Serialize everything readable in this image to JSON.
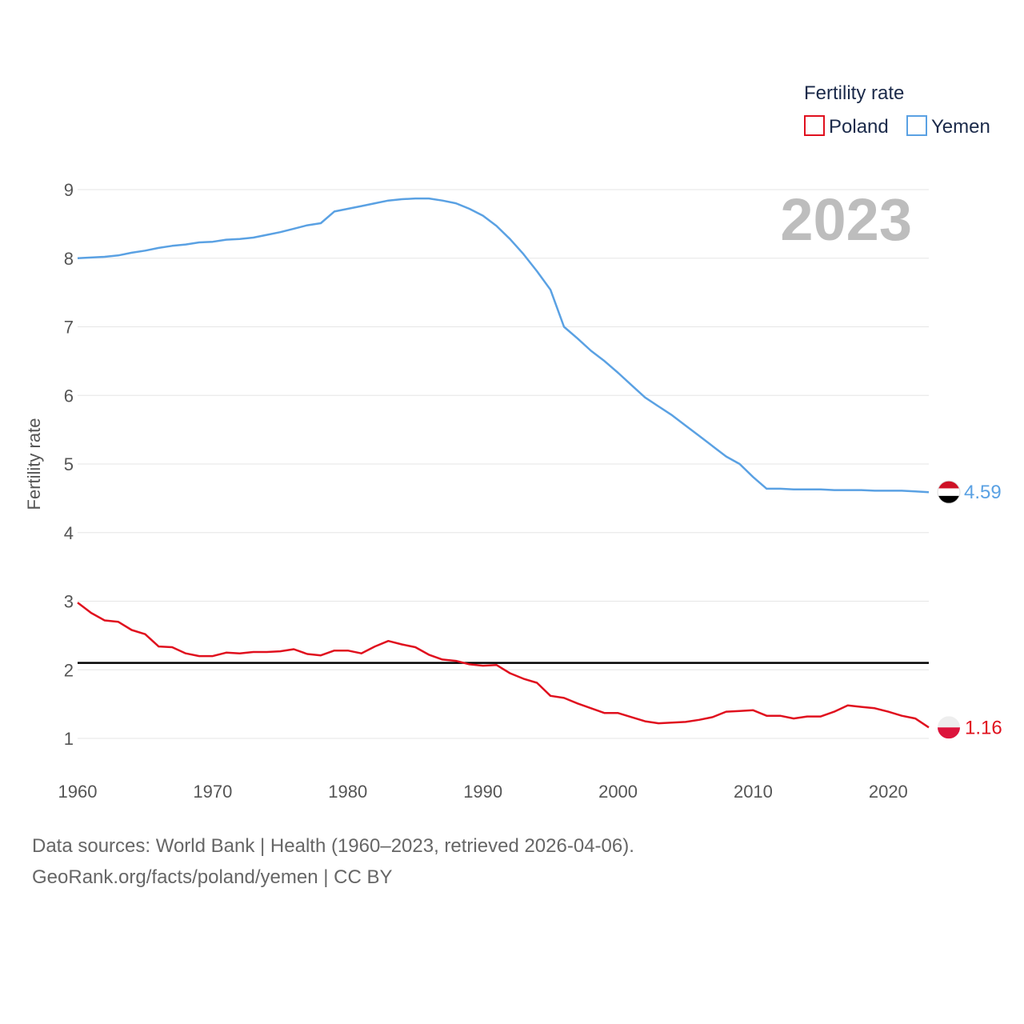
{
  "chart_data": {
    "type": "line",
    "legend_title": "Fertility rate",
    "ylabel": "Fertility rate",
    "year_label": "2023",
    "xlim": [
      1960,
      2023
    ],
    "ylim": [
      0.5,
      9.2
    ],
    "x_ticks": [
      1960,
      1970,
      1980,
      1990,
      2000,
      2010,
      2020
    ],
    "y_ticks": [
      1,
      2,
      3,
      4,
      5,
      6,
      7,
      8,
      9
    ],
    "reference_line": {
      "value": 2.1,
      "color": "#000000"
    },
    "x": [
      1960,
      1961,
      1962,
      1963,
      1964,
      1965,
      1966,
      1967,
      1968,
      1969,
      1970,
      1971,
      1972,
      1973,
      1974,
      1975,
      1976,
      1977,
      1978,
      1979,
      1980,
      1981,
      1982,
      1983,
      1984,
      1985,
      1986,
      1987,
      1988,
      1989,
      1990,
      1991,
      1992,
      1993,
      1994,
      1995,
      1996,
      1997,
      1998,
      1999,
      2000,
      2001,
      2002,
      2003,
      2004,
      2005,
      2006,
      2007,
      2008,
      2009,
      2010,
      2011,
      2012,
      2013,
      2014,
      2015,
      2016,
      2017,
      2018,
      2019,
      2020,
      2021,
      2022,
      2023
    ],
    "series": [
      {
        "name": "Poland",
        "color": "#e0101e",
        "end_label": "1.16",
        "values": [
          2.98,
          2.83,
          2.72,
          2.7,
          2.58,
          2.52,
          2.34,
          2.33,
          2.24,
          2.2,
          2.2,
          2.25,
          2.24,
          2.26,
          2.26,
          2.27,
          2.3,
          2.23,
          2.21,
          2.28,
          2.28,
          2.24,
          2.34,
          2.42,
          2.37,
          2.33,
          2.22,
          2.15,
          2.13,
          2.08,
          2.06,
          2.07,
          1.95,
          1.87,
          1.81,
          1.62,
          1.59,
          1.51,
          1.44,
          1.37,
          1.37,
          1.31,
          1.25,
          1.22,
          1.23,
          1.24,
          1.27,
          1.31,
          1.39,
          1.4,
          1.41,
          1.33,
          1.33,
          1.29,
          1.32,
          1.32,
          1.39,
          1.48,
          1.46,
          1.44,
          1.39,
          1.33,
          1.29,
          1.16
        ]
      },
      {
        "name": "Yemen",
        "color": "#5aa1e3",
        "end_label": "4.59",
        "values": [
          8.0,
          8.01,
          8.02,
          8.04,
          8.08,
          8.11,
          8.15,
          8.18,
          8.2,
          8.23,
          8.24,
          8.27,
          8.28,
          8.3,
          8.34,
          8.38,
          8.43,
          8.48,
          8.51,
          8.68,
          8.72,
          8.76,
          8.8,
          8.84,
          8.86,
          8.87,
          8.87,
          8.84,
          8.8,
          8.72,
          8.62,
          8.47,
          8.28,
          8.06,
          7.81,
          7.54,
          7.0,
          6.83,
          6.65,
          6.5,
          6.33,
          6.15,
          5.97,
          5.84,
          5.71,
          5.56,
          5.41,
          5.26,
          5.11,
          5.0,
          4.81,
          4.64,
          4.64,
          4.63,
          4.63,
          4.63,
          4.62,
          4.62,
          4.62,
          4.61,
          4.61,
          4.61,
          4.6,
          4.59
        ]
      }
    ]
  },
  "footer": {
    "line1": "Data sources: World Bank | Health (1960–2023, retrieved 2026-04-06).",
    "line2": "GeoRank.org/facts/poland/yemen | CC BY"
  }
}
